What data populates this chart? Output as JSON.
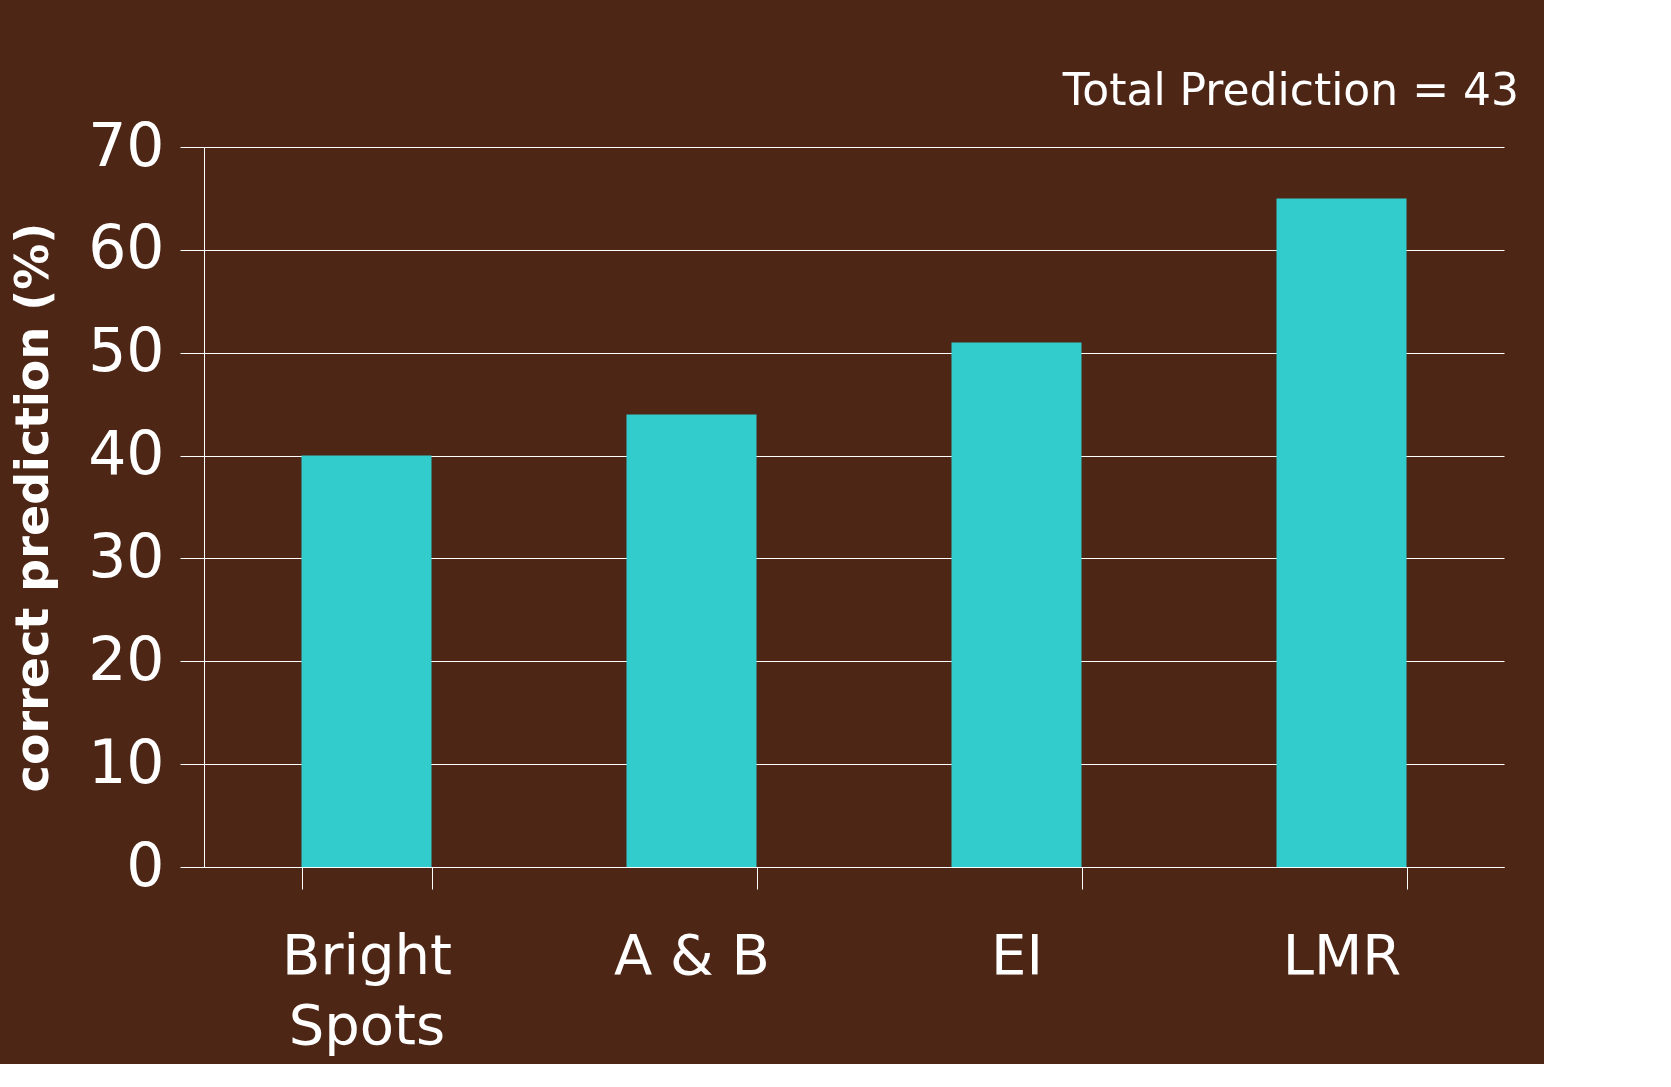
{
  "chart_data": {
    "type": "bar",
    "ylabel": "correct prediction (%)",
    "categories": [
      "Bright Spots",
      "A & B",
      "EI",
      "LMR"
    ],
    "values": [
      40,
      44,
      51,
      65
    ],
    "color": "#33cccc",
    "ylim": [
      0,
      70
    ],
    "yticks": [
      0,
      10,
      20,
      30,
      40,
      50,
      60,
      70
    ],
    "grid": "y",
    "annotations": [
      "Total Prediction = 43"
    ]
  }
}
